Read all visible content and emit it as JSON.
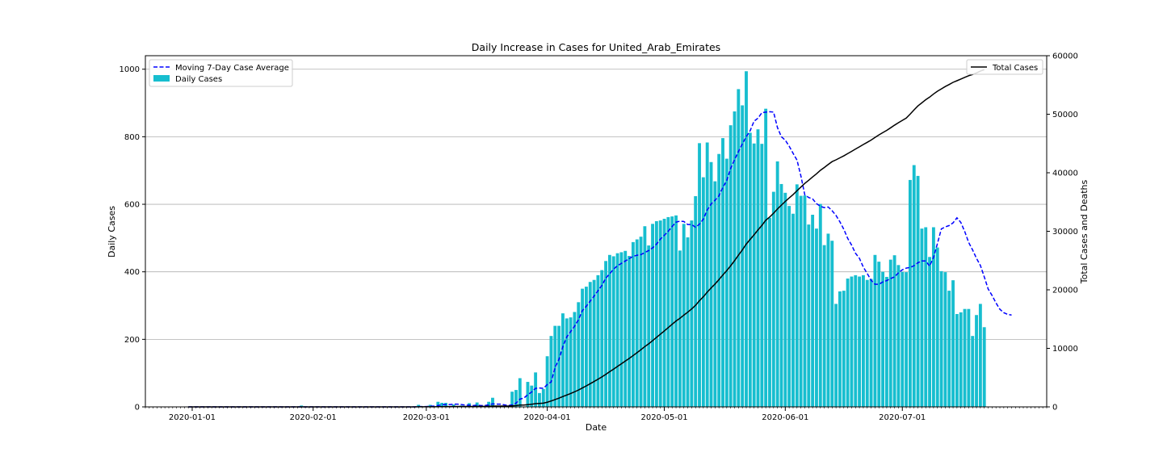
{
  "chart_data": {
    "type": "bar",
    "title": "Daily Increase in Cases for United_Arab_Emirates",
    "xlabel": "Date",
    "ylabel": "Daily Cases",
    "y2label": "Total Cases and Deaths",
    "ylim": [
      0,
      1040
    ],
    "y2lim": [
      0,
      60000
    ],
    "x_start": "2019-12-31",
    "x_range": [
      "2019-12-20",
      "2020-08-07"
    ],
    "grid": "horizontal",
    "yticks": [
      "0",
      "200",
      "400",
      "600",
      "800",
      "1000"
    ],
    "y2ticks": [
      "0",
      "10000",
      "20000",
      "30000",
      "40000",
      "50000",
      "60000"
    ],
    "xticks": [
      {
        "date": "2020-01-01",
        "label": "2020-01-01"
      },
      {
        "date": "2020-02-01",
        "label": "2020-02-01"
      },
      {
        "date": "2020-03-01",
        "label": "2020-03-01"
      },
      {
        "date": "2020-04-01",
        "label": "2020-04-01"
      },
      {
        "date": "2020-05-01",
        "label": "2020-05-01"
      },
      {
        "date": "2020-06-01",
        "label": "2020-06-01"
      },
      {
        "date": "2020-07-01",
        "label": "2020-07-01"
      }
    ],
    "legend_left": [
      "Moving 7-Day Case Average",
      "Daily Cases"
    ],
    "legend_right": [
      "Total Cases"
    ],
    "legend_left_position": "top-left",
    "legend_right_position": "top-right",
    "colors": {
      "bars": "#17becf",
      "avg": "#0000ff",
      "total": "#000000",
      "grid": "#b0b0b0"
    },
    "daily_cases": [
      0,
      0,
      0,
      0,
      0,
      0,
      0,
      0,
      0,
      0,
      0,
      0,
      0,
      0,
      0,
      0,
      0,
      0,
      0,
      0,
      0,
      0,
      0,
      0,
      0,
      0,
      0,
      0,
      0,
      4,
      0,
      0,
      0,
      0,
      0,
      0,
      0,
      0,
      0,
      0,
      0,
      0,
      0,
      0,
      0,
      0,
      0,
      0,
      0,
      0,
      0,
      0,
      0,
      0,
      0,
      0,
      0,
      0,
      0,
      6,
      0,
      0,
      6,
      0,
      15,
      12,
      12,
      0,
      7,
      0,
      4,
      0,
      11,
      0,
      13,
      0,
      0,
      15,
      27,
      0,
      0,
      0,
      0,
      45,
      50,
      85,
      0,
      74,
      63,
      102,
      41,
      53,
      150,
      210,
      240,
      240,
      277,
      262,
      265,
      281,
      310,
      350,
      356,
      370,
      376,
      390,
      405,
      432,
      450,
      446,
      455,
      458,
      462,
      447,
      488,
      496,
      504,
      535,
      478,
      542,
      550,
      552,
      557,
      562,
      564,
      567,
      463,
      542,
      502,
      552,
      624,
      781,
      680,
      783,
      725,
      668,
      749,
      796,
      735,
      834,
      875,
      941,
      893,
      994,
      812,
      780,
      822,
      779,
      883,
      560,
      637,
      727,
      660,
      634,
      595,
      572,
      659,
      625,
      626,
      540,
      569,
      528,
      601,
      479,
      513,
      492,
      305,
      342,
      344,
      380,
      386,
      390,
      386,
      390,
      376,
      379,
      450,
      430,
      400,
      385,
      436,
      449,
      420,
      400,
      399,
      672,
      716,
      684,
      528,
      532,
      444,
      532,
      472,
      402,
      399,
      344,
      375,
      275,
      280,
      290,
      290,
      210,
      272,
      305,
      236
    ],
    "moving_avg": [
      0,
      0,
      0,
      0,
      0,
      0,
      0,
      0,
      0,
      0,
      0,
      0,
      0,
      0,
      0,
      0,
      0,
      0,
      0,
      0,
      0,
      0,
      0,
      0,
      0,
      0,
      0,
      0,
      0,
      0,
      0,
      0,
      0,
      0,
      0,
      0,
      0,
      0,
      0,
      0,
      0,
      0,
      0,
      0,
      0,
      0,
      0,
      0,
      0,
      0,
      0,
      0,
      0,
      0,
      0,
      0,
      0,
      0,
      0,
      1,
      1,
      1,
      2,
      2,
      4,
      6,
      7,
      7,
      8,
      8,
      7,
      5,
      5,
      4,
      5,
      4,
      4,
      6,
      9,
      8,
      8,
      6,
      4,
      6,
      11,
      23,
      26,
      36,
      44,
      55,
      56,
      55,
      66,
      74,
      117,
      141,
      179,
      207,
      223,
      239,
      258,
      285,
      298,
      313,
      328,
      344,
      360,
      381,
      394,
      408,
      418,
      425,
      432,
      439,
      446,
      449,
      451,
      457,
      463,
      471,
      482,
      497,
      508,
      520,
      534,
      547,
      550,
      549,
      540,
      540,
      532,
      541,
      556,
      583,
      601,
      612,
      625,
      650,
      670,
      706,
      732,
      756,
      779,
      800,
      818,
      846,
      855,
      871,
      873,
      874,
      873,
      827,
      800,
      790,
      772,
      751,
      731,
      684,
      628,
      620,
      616,
      602,
      594,
      590,
      592,
      581,
      567,
      548,
      526,
      499,
      479,
      455,
      440,
      414,
      395,
      375,
      363,
      363,
      370,
      374,
      380,
      385,
      397,
      406,
      411,
      413,
      418,
      427,
      432,
      432,
      417,
      443,
      484,
      527,
      533,
      537,
      545,
      560,
      546,
      519,
      487,
      465,
      440,
      419,
      385,
      349,
      330,
      308,
      289,
      279,
      274,
      272
    ],
    "total_cases": [
      0,
      0,
      0,
      0,
      0,
      0,
      0,
      0,
      0,
      0,
      0,
      0,
      0,
      0,
      0,
      0,
      0,
      0,
      0,
      0,
      0,
      0,
      0,
      0,
      0,
      0,
      0,
      0,
      0,
      4,
      4,
      4,
      4,
      4,
      4,
      4,
      4,
      4,
      4,
      4,
      4,
      4,
      4,
      4,
      4,
      4,
      4,
      4,
      4,
      4,
      4,
      4,
      4,
      4,
      4,
      4,
      4,
      4,
      4,
      10,
      10,
      10,
      16,
      16,
      31,
      43,
      55,
      55,
      62,
      62,
      66,
      66,
      77,
      77,
      90,
      90,
      90,
      105,
      132,
      132,
      132,
      132,
      132,
      177,
      227,
      312,
      312,
      386,
      449,
      551,
      592,
      645,
      795,
      1005,
      1245,
      1485,
      1762,
      2024,
      2289,
      2570,
      2880,
      3230,
      3586,
      3956,
      4332,
      4722,
      5127,
      5559,
      6009,
      6455,
      6910,
      7368,
      7830,
      8277,
      8765,
      9261,
      9765,
      10300,
      10778,
      11320,
      11870,
      12422,
      12979,
      13541,
      14105,
      14672,
      15135,
      15677,
      16179,
      16731,
      17355,
      18136,
      18816,
      19599,
      20324,
      20992,
      21741,
      22537,
      23272,
      24106,
      24981,
      25922,
      26815,
      27809,
      28621,
      29401,
      30223,
      31002,
      31885,
      32445,
      33082,
      33809,
      34469,
      35103,
      35698,
      36270,
      36929,
      37554,
      38180,
      38720,
      39289,
      39817,
      40418,
      40897,
      41410,
      41902,
      42207,
      42549,
      42893,
      43273,
      43659,
      44049,
      44435,
      44825,
      45201,
      45580,
      46030,
      46460,
      46860,
      47245,
      47681,
      48130,
      48550,
      48950,
      49349,
      50021,
      50737,
      51421,
      51949,
      52481,
      52925,
      53457,
      53929,
      54331,
      54730,
      55074,
      55449,
      55724,
      56004,
      56294,
      56584,
      56794,
      57066,
      57371,
      57607
    ]
  }
}
